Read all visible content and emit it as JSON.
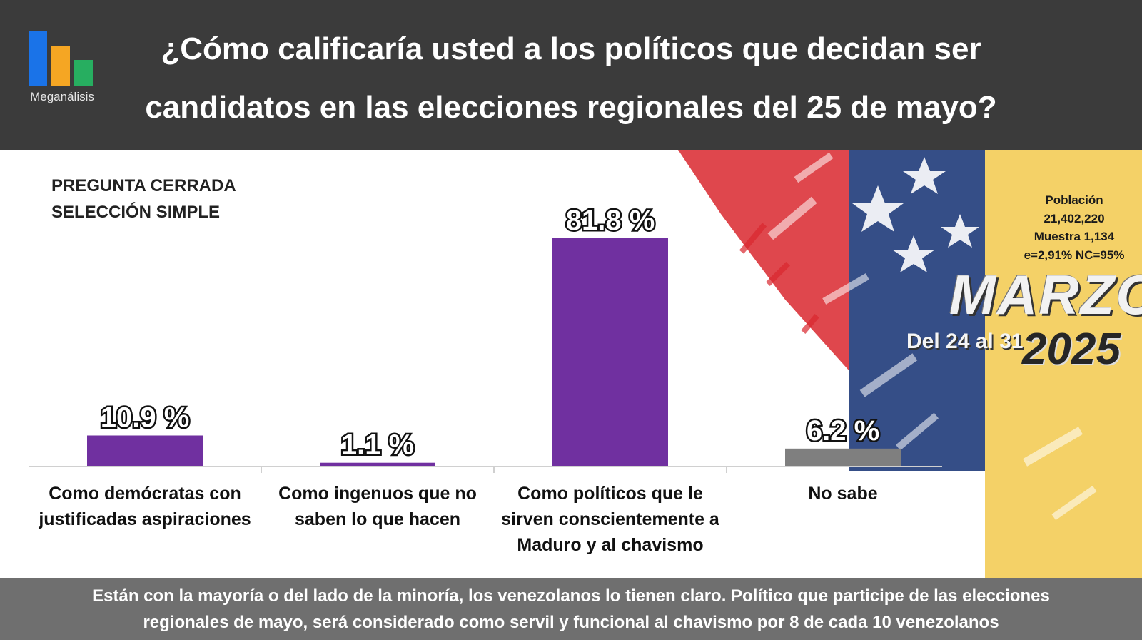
{
  "header": {
    "logo_text": "Meganálisis",
    "title_line1": "¿Cómo calificaría usted a los políticos que decidan ser",
    "title_line2": "candidatos en las elecciones regionales del 25 de mayo?",
    "brand_colors": {
      "blue": "#1a73e8",
      "orange": "#f5a623",
      "green": "#27ae60"
    }
  },
  "subtitle": {
    "line1": "PREGUNTA CERRADA",
    "line2": "SELECCIÓN SIMPLE"
  },
  "info": {
    "poblacion_label": "Población",
    "poblacion_value": "21,402,220",
    "muestra": "Muestra 1,134",
    "error": "e=2,91%  NC=95%"
  },
  "period": {
    "month": "MARZO",
    "range": "Del 24 al 31",
    "year": "2025"
  },
  "chart_data": {
    "type": "bar",
    "categories": [
      [
        "Como demócratas con",
        "justificadas aspiraciones"
      ],
      [
        "Como ingenuos que no",
        "saben lo que hacen"
      ],
      [
        "Como políticos que le",
        "sirven conscientemente a",
        "Maduro y al chavismo"
      ],
      [
        "No sabe"
      ]
    ],
    "values": [
      10.9,
      1.1,
      81.8,
      6.2
    ],
    "value_labels": [
      "10.9 %",
      "1.1 %",
      "81.8 %",
      "6.2 %"
    ],
    "colors": [
      "#7030a0",
      "#7030a0",
      "#7030a0",
      "#7f7f7f"
    ],
    "ylim": [
      0,
      100
    ],
    "grid": false
  },
  "footer": {
    "line1": "Están con la mayoría o del lado de la minoría, los venezolanos lo tienen claro. Político que participe de las elecciones",
    "line2": "regionales de mayo, será considerado como servil y funcional al chavismo por 8 de cada 10 venezolanos"
  }
}
